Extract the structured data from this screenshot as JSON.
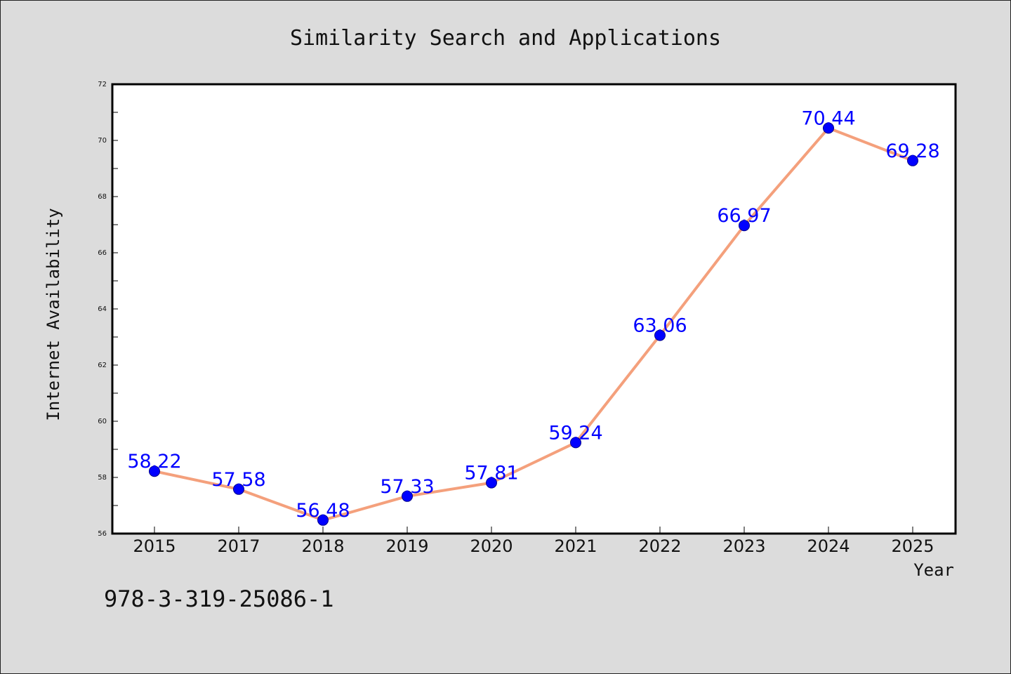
{
  "chart_data": {
    "type": "line",
    "title": "Similarity Search and Applications",
    "xlabel": "Year",
    "ylabel": "Internet Availability",
    "categories": [
      "2015",
      "2017",
      "2018",
      "2019",
      "2020",
      "2021",
      "2022",
      "2023",
      "2024",
      "2025"
    ],
    "series": [
      {
        "values": [
          58.22,
          57.58,
          56.48,
          57.33,
          57.81,
          59.24,
          63.06,
          66.97,
          70.44,
          69.28
        ],
        "labels": [
          "58.22",
          "57.58",
          "56.48",
          "57.33",
          "57.81",
          "59.24",
          "63.06",
          "66.97",
          "70.44",
          "69.28"
        ]
      }
    ],
    "ylim": [
      56,
      72
    ],
    "yticks": [
      "56",
      "58",
      "60",
      "62",
      "64",
      "66",
      "68",
      "70",
      "72"
    ],
    "grid": false,
    "line_color": "#f4a07c",
    "marker_color": "#0000ff",
    "label_color": "#0000ff"
  },
  "footer_text": "978-3-319-25086-1",
  "colors": {
    "background": "#dcdcdc",
    "plot_background": "#ffffff"
  }
}
